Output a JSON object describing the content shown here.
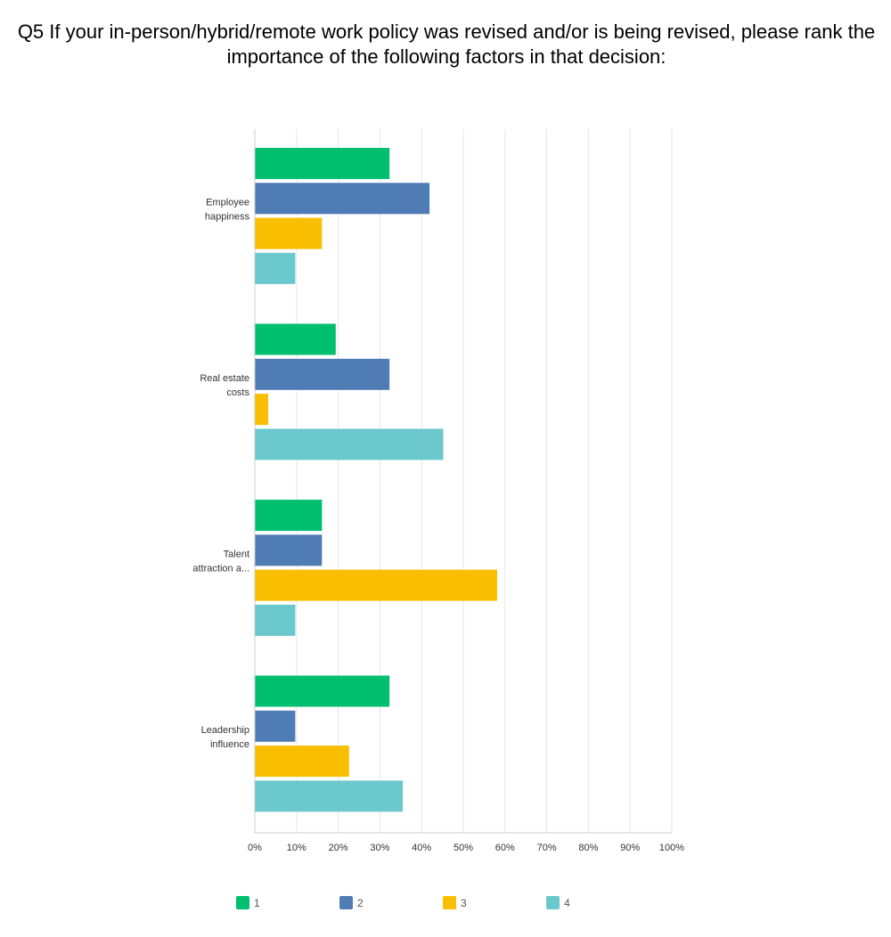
{
  "chart_data": {
    "type": "bar",
    "orientation": "horizontal",
    "title": "Q5 If your in-person/hybrid/remote work policy was revised and/or is being revised, please rank the importance of the following factors in that decision:",
    "categories": [
      [
        "Employee",
        "happiness"
      ],
      [
        "Real estate",
        "costs"
      ],
      [
        "Talent",
        "attraction a..."
      ],
      [
        "Leadership",
        "influence"
      ]
    ],
    "series": [
      {
        "name": "1",
        "color": "#00bf6f",
        "values": [
          32.3,
          19.4,
          16.1,
          32.3
        ]
      },
      {
        "name": "2",
        "color": "#507cb6",
        "values": [
          41.9,
          32.3,
          16.1,
          9.7
        ]
      },
      {
        "name": "3",
        "color": "#f9be00",
        "values": [
          16.1,
          3.2,
          58.1,
          22.6
        ]
      },
      {
        "name": "4",
        "color": "#6bc8cd",
        "values": [
          9.7,
          45.2,
          9.7,
          35.5
        ]
      }
    ],
    "xlim": [
      0,
      100
    ],
    "xticks": [
      "0%",
      "10%",
      "20%",
      "30%",
      "40%",
      "50%",
      "60%",
      "70%",
      "80%",
      "90%",
      "100%"
    ],
    "grid": true,
    "legend_position": "bottom"
  }
}
